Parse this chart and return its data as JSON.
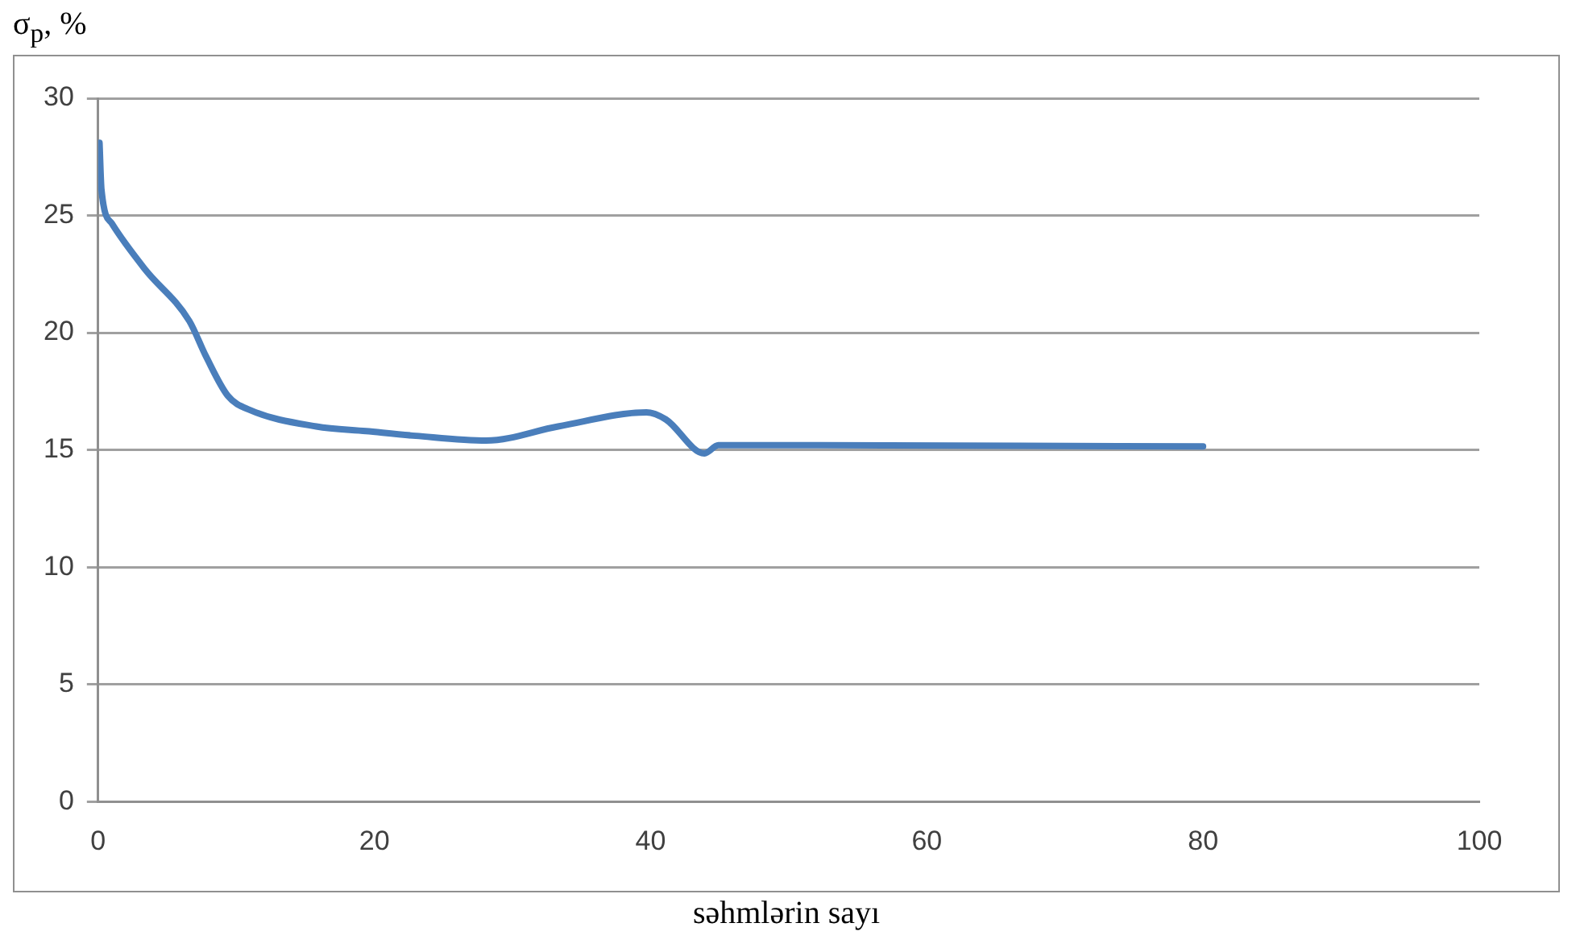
{
  "chart_data": {
    "type": "line",
    "xlabel": "səhmlərin sayı",
    "ylabel": "σ$_{p}$, %",
    "series": [
      {
        "color": "#4a7ebb",
        "x": [
          0.1,
          0.24,
          1.0,
          3.4,
          6.6,
          7.8,
          9.4,
          11,
          15.8,
          19.4,
          23,
          28.1,
          33.3,
          39.7,
          41.1,
          43.9,
          44.9,
          50.5,
          80
        ],
        "values": [
          28.1,
          26.1,
          24.65,
          22.7,
          20.5,
          19.0,
          17.3,
          16.7,
          16.0,
          15.8,
          15.6,
          15.4,
          16.0,
          16.6,
          16.3,
          14.85,
          15.2,
          15.2,
          15.15
        ]
      }
    ],
    "xlim": [
      0,
      100
    ],
    "xticks": [
      0,
      20,
      40,
      60,
      80,
      100
    ],
    "ylim": [
      0,
      30
    ],
    "yticks": [
      0,
      5,
      10,
      15,
      20,
      25,
      30
    ],
    "grid": "y",
    "marker": "none",
    "line_style": "solid",
    "legend": false
  }
}
